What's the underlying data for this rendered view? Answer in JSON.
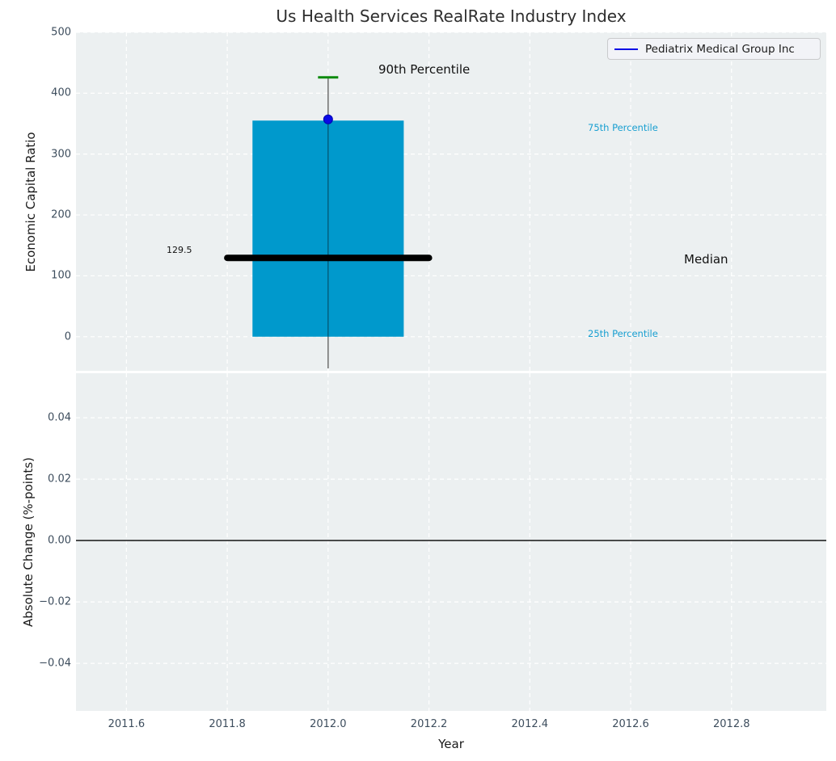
{
  "title": "Us Health Services RealRate Industry Index",
  "legend": {
    "label": "Pediatrix Medical Group Inc",
    "line_color": "#0a0ae6"
  },
  "annotations": {
    "p90_label": "90th Percentile",
    "p75_label": "75th Percentile",
    "p25_label": "25th Percentile",
    "median_label": "Median",
    "median_value_label": "129.5"
  },
  "colors": {
    "axes_background": "#ecf0f1",
    "grid": "#ffffff",
    "box_fill": "#0099cc",
    "median_line": "#000000",
    "whisker": "#6e6e6e",
    "p90_cap": "#0c8a0c",
    "company_point": "#0a0ae6",
    "percentile_text": "#189fd1",
    "tick_text": "#3d4d5d",
    "zero_line": "#000000"
  },
  "chart_data": {
    "type": "boxplot",
    "title": "Us Health Services RealRate Industry Index",
    "legend_entries": [
      "Pediatrix Medical Group Inc"
    ],
    "legend_position": "upper right",
    "grid": "white dashed on light gray",
    "x": {
      "label": "Year",
      "lim": [
        2011.5,
        2012.988
      ],
      "ticks": [
        {
          "value": 2011.6,
          "label": "2011.6"
        },
        {
          "value": 2011.8,
          "label": "2011.8"
        },
        {
          "value": 2012.0,
          "label": "2012.0"
        },
        {
          "value": 2012.2,
          "label": "2012.2"
        },
        {
          "value": 2012.4,
          "label": "2012.4"
        },
        {
          "value": 2012.6,
          "label": "2012.6"
        },
        {
          "value": 2012.8,
          "label": "2012.8"
        }
      ]
    },
    "top_panel": {
      "ylabel": "Economic Capital Ratio",
      "ylim": [
        -56,
        500
      ],
      "yticks": [
        {
          "value": 500,
          "label": "500"
        },
        {
          "value": 400,
          "label": "400"
        },
        {
          "value": 300,
          "label": "300"
        },
        {
          "value": 200,
          "label": "200"
        },
        {
          "value": 100,
          "label": "100"
        },
        {
          "value": 0,
          "label": "0"
        }
      ],
      "box": {
        "x": 2012.0,
        "q25": 0,
        "median": 129.5,
        "q75": 355,
        "p90": 426,
        "whisker_low": -52,
        "box_halfwidth_years": 0.15,
        "median_halfwidth_years": 0.2
      },
      "series_point": {
        "name": "Pediatrix Medical Group Inc",
        "x": 2012.0,
        "y": 357
      }
    },
    "bottom_panel": {
      "ylabel": "Absolute Change (%-points)",
      "ylim": [
        -0.0555,
        0.0545
      ],
      "yticks": [
        {
          "value": 0.04,
          "label": "0.04"
        },
        {
          "value": 0.02,
          "label": "0.02"
        },
        {
          "value": 0.0,
          "label": "0.00"
        },
        {
          "value": -0.02,
          "label": "−0.02"
        },
        {
          "value": -0.04,
          "label": "−0.04"
        }
      ],
      "zero_line": 0.0
    }
  }
}
